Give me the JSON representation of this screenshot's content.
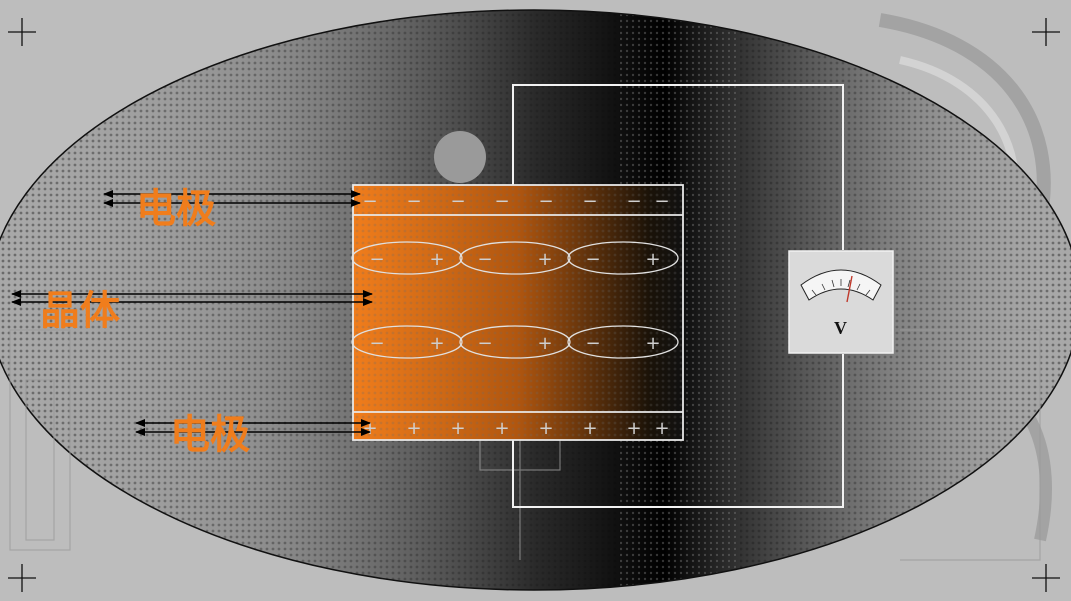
{
  "labels": {
    "electrode_top": "电极",
    "crystal": "晶体",
    "electrode_bottom": "电极"
  },
  "meter": {
    "symbol": "V"
  },
  "signs": {
    "top_electrode": [
      "−",
      "−",
      "−",
      "−",
      "−",
      "−",
      "−",
      "−"
    ],
    "bottom_electrode": [
      "+",
      "+",
      "+",
      "+",
      "+",
      "+",
      "+",
      "+"
    ],
    "dipole_negative": "−",
    "dipole_positive": "+"
  },
  "colors": {
    "crystal": "#f07d1c",
    "label": "#f07d1c",
    "wire": "#ffffff",
    "background": "#bdbdbd",
    "ellipse": "#1a1a1a"
  },
  "icons": {
    "corner": "crosshair-icon",
    "meter": "voltmeter-icon"
  }
}
